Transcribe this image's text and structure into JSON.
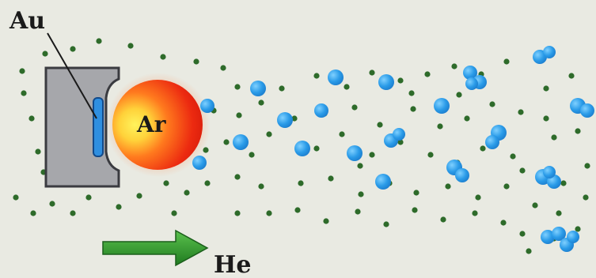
{
  "labels": {
    "target": "Au",
    "plasma": "Ar",
    "gas": "He"
  },
  "colors": {
    "background": "#e9eae2",
    "holder": "#a7a7aa",
    "holder_stroke": "#404045",
    "target": "#2f8fe0",
    "plasma_core": "#fff25a",
    "plasma_edge": "#e0200a",
    "helium_atom": "#2e6b2a",
    "gold_cluster": "#2a9be8",
    "arrow": "#2e9a2a"
  }
}
